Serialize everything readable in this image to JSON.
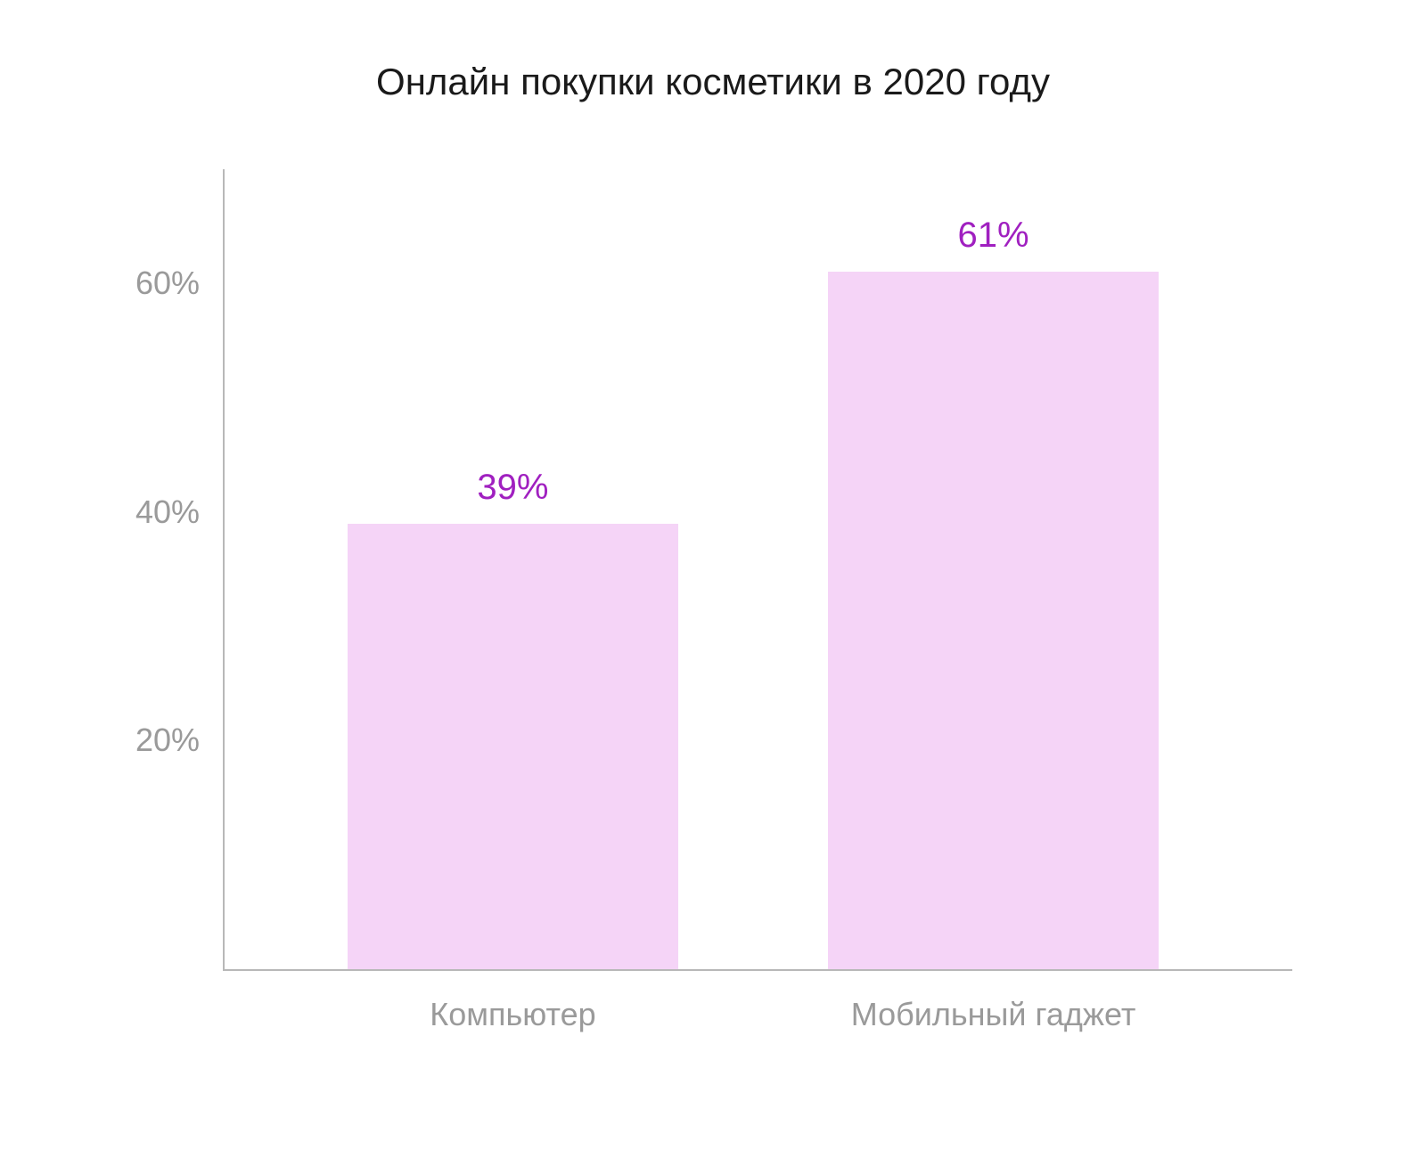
{
  "chart": {
    "type": "bar",
    "title": "Онлайн покупки косметики в 2020 году",
    "title_fontsize": 42,
    "title_color": "#1a1a1a",
    "background_color": "#ffffff",
    "axis_color": "#b8b8b8",
    "ylim_min": 0,
    "ylim_max": 70,
    "y_ticks": [
      {
        "value": 20,
        "label": "20%"
      },
      {
        "value": 40,
        "label": "40%"
      },
      {
        "value": 60,
        "label": "60%"
      }
    ],
    "tick_color": "#9a9a9a",
    "tick_fontsize": 36,
    "x_label_color": "#9a9a9a",
    "x_label_fontsize": 36,
    "value_label_color": "#a020c0",
    "value_label_fontsize": 40,
    "bar_color": "#f5d4f7",
    "bar_width_pct": 31,
    "bars": [
      {
        "category": "Компьютер",
        "value": 39,
        "value_label": "39%",
        "center_pct": 27
      },
      {
        "category": "Мобильный гаджет",
        "value": 61,
        "value_label": "61%",
        "center_pct": 72
      }
    ]
  }
}
